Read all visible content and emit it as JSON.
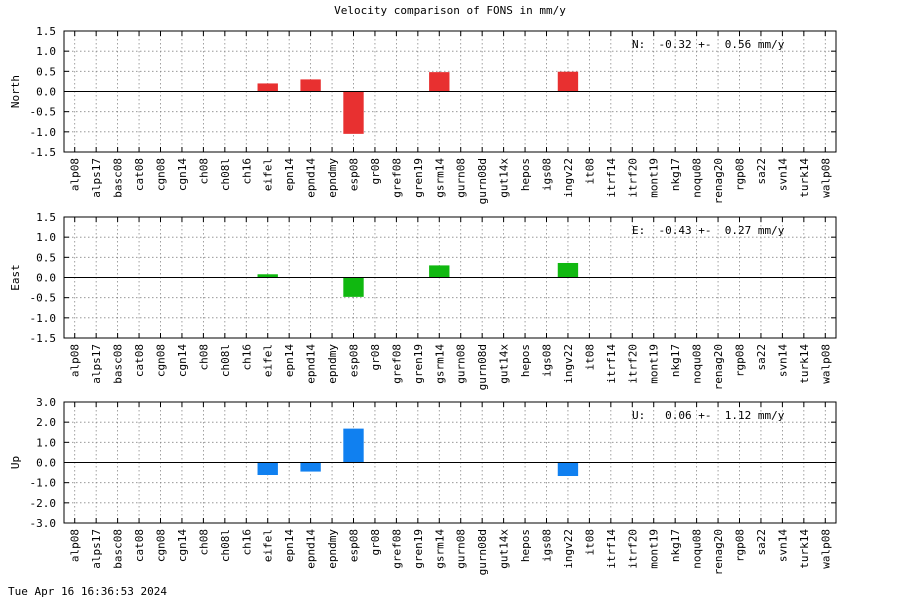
{
  "title": "Velocity comparison of FONS in mm/y",
  "timestamp": "Tue Apr 16 16:36:53 2024",
  "categories": [
    "alp08",
    "alps17",
    "basc08",
    "cat08",
    "cgn08",
    "cgn14",
    "ch08",
    "ch08l",
    "ch16",
    "eifel",
    "epn14",
    "epnd14",
    "epndmy",
    "esp08",
    "gr08",
    "gref08",
    "gren19",
    "gsrm14",
    "gurn08",
    "gurn08d",
    "gut14x",
    "hepos",
    "igs08",
    "ingv22",
    "it08",
    "itrf14",
    "itrf20",
    "mont19",
    "nkg17",
    "noqu08",
    "renag20",
    "rgp08",
    "sa22",
    "svn14",
    "turk14",
    "walp08"
  ],
  "chart_data": [
    {
      "type": "bar",
      "ylabel": "North",
      "ylim": [
        -1.5,
        1.5
      ],
      "yticks": [
        "1.5",
        "1.0",
        "0.5",
        "0.0",
        "-0.5",
        "-1.0",
        "-1.5"
      ],
      "ytick_values": [
        1.5,
        1.0,
        0.5,
        0.0,
        -0.5,
        -1.0,
        -1.5
      ],
      "color": "#e83030",
      "annotation": "N:  -0.32 +-  0.56 mm/y",
      "grid": true,
      "values": [
        0,
        0,
        0,
        0,
        0,
        0,
        0,
        0,
        0,
        0.2,
        0,
        0.3,
        0,
        -1.05,
        0,
        0,
        0,
        0.48,
        0,
        0,
        0,
        0,
        0,
        0.49,
        0,
        0,
        0,
        0,
        0,
        0,
        0,
        0,
        0,
        0,
        0,
        0
      ]
    },
    {
      "type": "bar",
      "ylabel": "East",
      "ylim": [
        -1.5,
        1.5
      ],
      "yticks": [
        "1.5",
        "1.0",
        "0.5",
        "0.0",
        "-0.5",
        "-1.0",
        "-1.5"
      ],
      "ytick_values": [
        1.5,
        1.0,
        0.5,
        0.0,
        -0.5,
        -1.0,
        -1.5
      ],
      "color": "#10b810",
      "annotation": "E:  -0.43 +-  0.27 mm/y",
      "grid": true,
      "values": [
        0,
        0,
        0,
        0,
        0,
        0,
        0,
        0,
        0,
        0.08,
        0,
        0,
        0,
        -0.48,
        0,
        0,
        0,
        0.3,
        0,
        0,
        0,
        0,
        0,
        0.36,
        0,
        0,
        0,
        0,
        0,
        0,
        0,
        0,
        0,
        0,
        0,
        0
      ]
    },
    {
      "type": "bar",
      "ylabel": "Up",
      "ylim": [
        -3.0,
        3.0
      ],
      "yticks": [
        "3.0",
        "2.0",
        "1.0",
        "0.0",
        "-1.0",
        "-2.0",
        "-3.0"
      ],
      "ytick_values": [
        3.0,
        2.0,
        1.0,
        0.0,
        -1.0,
        -2.0,
        -3.0
      ],
      "color": "#1080f0",
      "annotation": "U:   0.06 +-  1.12 mm/y",
      "grid": true,
      "values": [
        0,
        0,
        0,
        0,
        0,
        0,
        0,
        0,
        0,
        -0.62,
        0,
        -0.45,
        0,
        1.68,
        0,
        0,
        0,
        0,
        0,
        0,
        0,
        0,
        0,
        -0.67,
        0,
        0,
        0,
        0,
        0,
        0,
        0,
        0,
        0,
        0,
        0,
        0
      ]
    }
  ]
}
